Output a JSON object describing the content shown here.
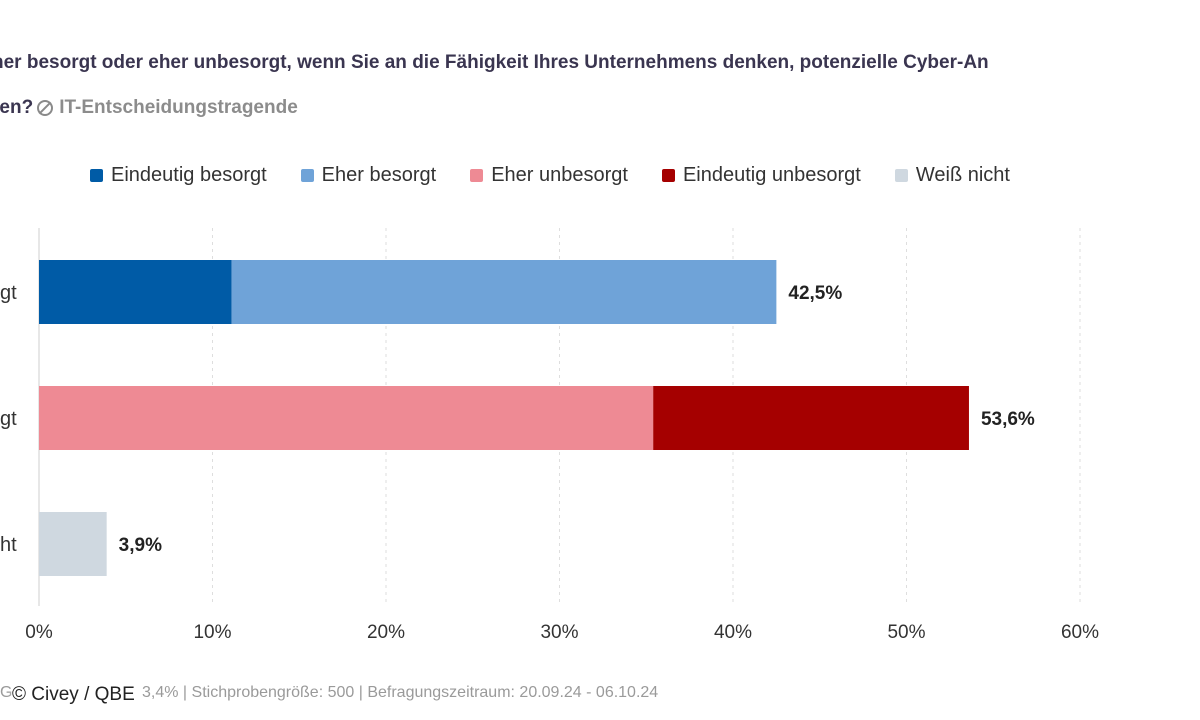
{
  "header": {
    "title_line1": "her besorgt oder eher unbesorgt, wenn Sie an die Fähigkeit Ihres Unternehmens denken, potenzielle Cyber-An",
    "title_line2": "ren?",
    "audience": "IT-Entscheidungstragende",
    "audience_icon": "circle-slash-icon"
  },
  "chart_data": {
    "type": "bar",
    "orientation": "horizontal",
    "stacked": true,
    "categories": [
      "gt",
      "gt",
      "ht"
    ],
    "series": [
      {
        "name": "Eindeutig besorgt",
        "color": "#005BA6",
        "values": [
          11.1,
          0,
          0
        ]
      },
      {
        "name": "Eher besorgt",
        "color": "#6FA3D8",
        "values": [
          31.4,
          0,
          0
        ]
      },
      {
        "name": "Eher unbesorgt",
        "color": "#EE8A94",
        "values": [
          0,
          35.4,
          0
        ]
      },
      {
        "name": "Eindeutig unbesorgt",
        "color": "#A50000",
        "values": [
          0,
          18.2,
          0
        ]
      },
      {
        "name": "Weiß nicht",
        "color": "#CFD8E0",
        "values": [
          0,
          0,
          3.9
        ]
      }
    ],
    "totals": [
      "42,5%",
      "53,6%",
      "3,9%"
    ],
    "xlim": [
      0,
      60
    ],
    "xticks": [
      "0%",
      "10%",
      "20%",
      "30%",
      "40%",
      "50%",
      "60%"
    ],
    "grid": true,
    "legend_position": "top"
  },
  "footer": {
    "stats": "3,4% | Stichprobengröße: 500 | Befragungszeitraum: 20.09.24 - 06.10.24",
    "stats_prefix": "G",
    "copyright": "© Civey / QBE"
  }
}
